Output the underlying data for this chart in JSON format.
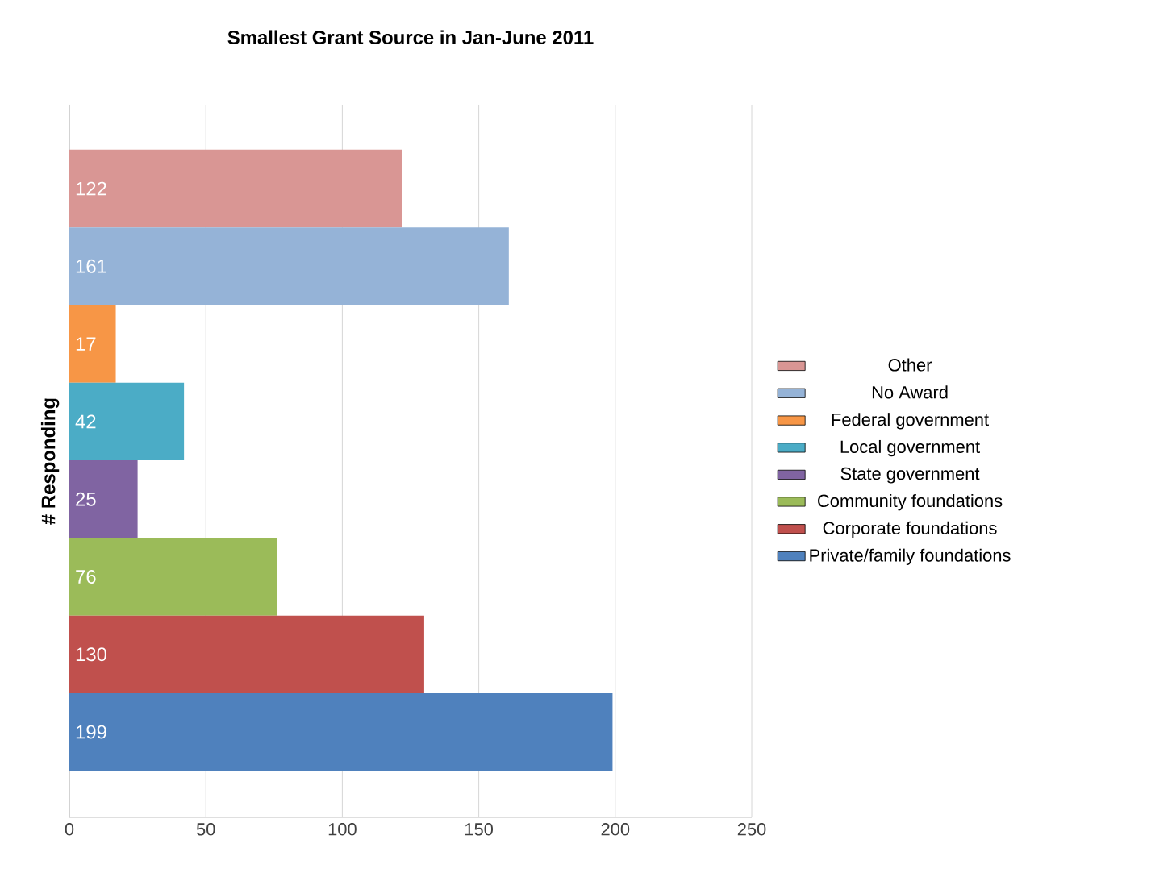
{
  "chart_data": {
    "type": "bar",
    "orientation": "horizontal",
    "title": "Smallest Grant Source in Jan-June 2011",
    "ylabel": "# Responding",
    "categories": [
      null,
      null,
      null,
      null,
      null,
      null,
      null,
      null
    ],
    "series": [
      {
        "name": "Other",
        "color": "#d99694",
        "values": [
          122,
          null,
          null,
          null,
          null,
          null,
          null,
          null
        ]
      },
      {
        "name": "No Award",
        "color": "#95b3d7",
        "values": [
          null,
          161,
          null,
          null,
          null,
          null,
          null,
          null
        ]
      },
      {
        "name": "Federal government",
        "color": "#f79646",
        "values": [
          null,
          null,
          17,
          null,
          null,
          null,
          null,
          null
        ]
      },
      {
        "name": "Local government",
        "color": "#4bacc6",
        "values": [
          null,
          null,
          null,
          42,
          null,
          null,
          null,
          null
        ]
      },
      {
        "name": "State government",
        "color": "#8064a2",
        "values": [
          null,
          null,
          null,
          null,
          25,
          null,
          null,
          null
        ]
      },
      {
        "name": "Community foundations",
        "color": "#9bbb59",
        "values": [
          null,
          null,
          null,
          null,
          null,
          76,
          null,
          null
        ]
      },
      {
        "name": "Corporate foundations",
        "color": "#c0504d",
        "values": [
          null,
          null,
          null,
          null,
          null,
          null,
          130,
          null
        ]
      },
      {
        "name": "Private/family foundations",
        "color": "#4f81bd",
        "values": [
          null,
          null,
          null,
          null,
          null,
          null,
          null,
          199
        ]
      }
    ],
    "xlim": [
      0,
      250
    ],
    "xticks": [
      0,
      50,
      100,
      150,
      200,
      250
    ],
    "grid": "x",
    "legend": "right",
    "data_labels": true
  }
}
